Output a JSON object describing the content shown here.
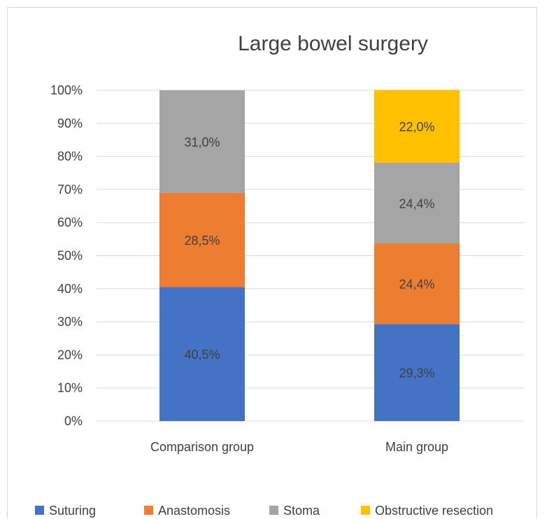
{
  "chart_data": {
    "type": "bar",
    "stacked": true,
    "title": "Large bowel surgery",
    "categories": [
      "Comparison group",
      "Main group"
    ],
    "series": [
      {
        "name": "Suturing",
        "color": "#4472C4",
        "values": [
          40.5,
          29.3
        ],
        "labels": [
          "40,5%",
          "29,3%"
        ]
      },
      {
        "name": "Anastomosis",
        "color": "#ED7D31",
        "values": [
          28.5,
          24.4
        ],
        "labels": [
          "28,5%",
          "24,4%"
        ]
      },
      {
        "name": "Stoma",
        "color": "#A5A5A5",
        "values": [
          31.0,
          24.4
        ],
        "labels": [
          "31,0%",
          "24,4%"
        ]
      },
      {
        "name": "Obstructive resection",
        "color": "#FFC000",
        "values": [
          0,
          22.0
        ],
        "labels": [
          "",
          "22,0%"
        ]
      }
    ],
    "ylim": [
      0,
      100
    ],
    "yticks": [
      "0%",
      "10%",
      "20%",
      "30%",
      "40%",
      "50%",
      "60%",
      "70%",
      "80%",
      "90%",
      "100%"
    ],
    "grid": true,
    "legend": "bottom"
  }
}
